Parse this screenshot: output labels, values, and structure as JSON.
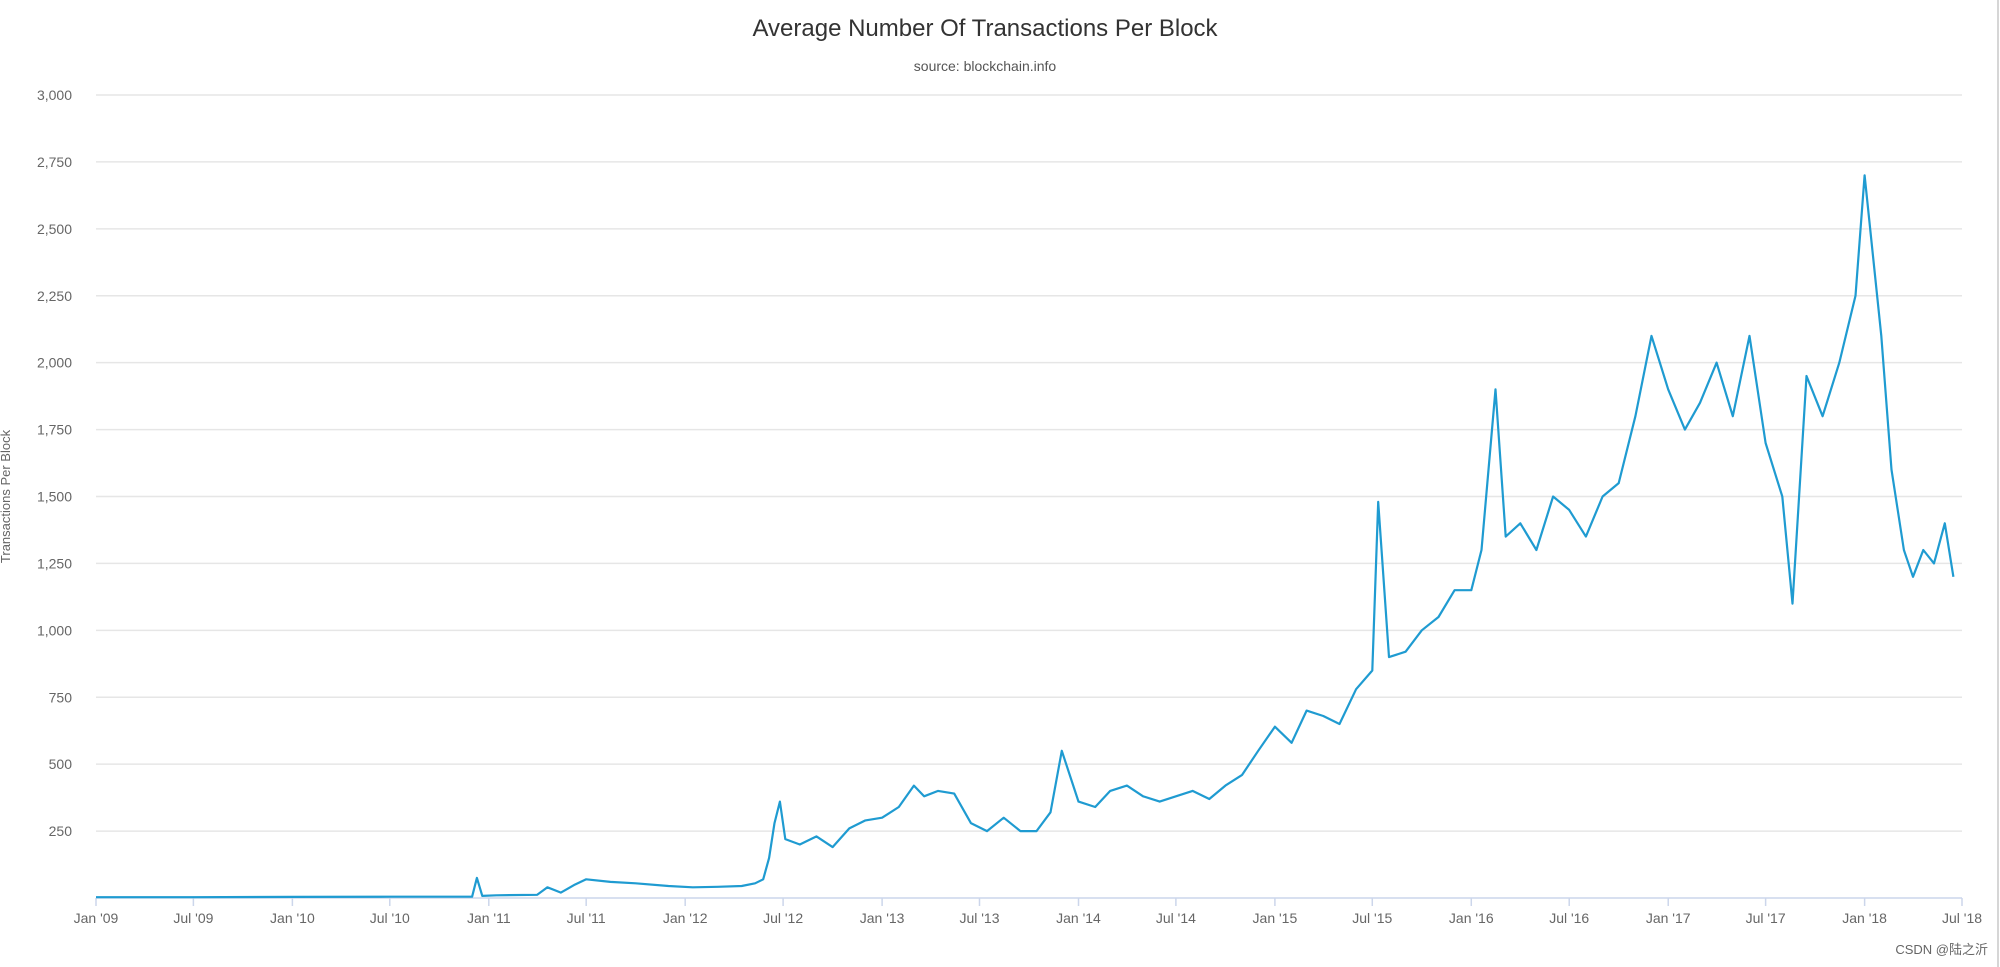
{
  "chart_data": {
    "type": "line",
    "title": "Average Number Of Transactions Per Block",
    "subtitle": "source: blockchain.info",
    "xlabel": "",
    "ylabel": "Transactions Per Block",
    "ylim": [
      0,
      3000
    ],
    "yticks": [
      250,
      500,
      750,
      1000,
      1250,
      1500,
      1750,
      2000,
      2250,
      2500,
      2750,
      3000
    ],
    "ytick_labels": [
      "250",
      "500",
      "750",
      "1,000",
      "1,250",
      "1,500",
      "1,750",
      "2,000",
      "2,250",
      "2,500",
      "2,750",
      "3,000"
    ],
    "xlim": [
      "2009-01-01",
      "2018-07-01"
    ],
    "xticks": [
      "2009-01-01",
      "2009-07-01",
      "2010-01-01",
      "2010-07-01",
      "2011-01-01",
      "2011-07-01",
      "2012-01-01",
      "2012-07-01",
      "2013-01-01",
      "2013-07-01",
      "2014-01-01",
      "2014-07-01",
      "2015-01-01",
      "2015-07-01",
      "2016-01-01",
      "2016-07-01",
      "2017-01-01",
      "2017-07-01",
      "2018-01-01",
      "2018-07-01"
    ],
    "xtick_labels": [
      "Jan '09",
      "Jul '09",
      "Jan '10",
      "Jul '10",
      "Jan '11",
      "Jul '11",
      "Jan '12",
      "Jul '12",
      "Jan '13",
      "Jul '13",
      "Jan '14",
      "Jul '14",
      "Jan '15",
      "Jul '15",
      "Jan '16",
      "Jul '16",
      "Jan '17",
      "Jul '17",
      "Jan '18",
      "Jul '18"
    ],
    "grid": true,
    "legend": "none",
    "color": "#1f9bd1",
    "series": [
      {
        "x": [
          "2009-01-01",
          "2009-07-01",
          "2010-01-01",
          "2010-07-01",
          "2010-12-01",
          "2010-12-10",
          "2010-12-20",
          "2011-01-15",
          "2011-04-01",
          "2011-04-20",
          "2011-05-15",
          "2011-06-10",
          "2011-07-01",
          "2011-08-15",
          "2011-10-01",
          "2011-12-01",
          "2012-01-15",
          "2012-03-01",
          "2012-04-15",
          "2012-05-10",
          "2012-05-25",
          "2012-06-05",
          "2012-06-15",
          "2012-06-25",
          "2012-07-05",
          "2012-08-01",
          "2012-09-01",
          "2012-10-01",
          "2012-11-01",
          "2012-12-01",
          "2013-01-01",
          "2013-02-01",
          "2013-03-01",
          "2013-03-20",
          "2013-04-15",
          "2013-05-15",
          "2013-06-15",
          "2013-07-15",
          "2013-08-15",
          "2013-09-15",
          "2013-10-15",
          "2013-11-10",
          "2013-12-01",
          "2014-01-01",
          "2014-02-01",
          "2014-03-01",
          "2014-04-01",
          "2014-05-01",
          "2014-06-01",
          "2014-07-01",
          "2014-08-01",
          "2014-09-01",
          "2014-10-01",
          "2014-11-01",
          "2014-12-01",
          "2015-01-01",
          "2015-02-01",
          "2015-03-01",
          "2015-04-01",
          "2015-05-01",
          "2015-06-01",
          "2015-07-01",
          "2015-07-12",
          "2015-08-01",
          "2015-09-01",
          "2015-10-01",
          "2015-11-01",
          "2015-12-01",
          "2016-01-01",
          "2016-01-20",
          "2016-02-15",
          "2016-03-05",
          "2016-04-01",
          "2016-05-01",
          "2016-06-01",
          "2016-07-01",
          "2016-08-01",
          "2016-09-01",
          "2016-10-01",
          "2016-11-01",
          "2016-12-01",
          "2017-01-01",
          "2017-02-01",
          "2017-03-01",
          "2017-04-01",
          "2017-05-01",
          "2017-06-01",
          "2017-07-01",
          "2017-08-01",
          "2017-08-20",
          "2017-09-15",
          "2017-10-15",
          "2017-11-15",
          "2017-12-15",
          "2018-01-01",
          "2018-02-01",
          "2018-02-20",
          "2018-03-15",
          "2018-04-01",
          "2018-04-20",
          "2018-05-10",
          "2018-05-30",
          "2018-06-15"
        ],
        "values": [
          3,
          3,
          4,
          5,
          5,
          75,
          8,
          10,
          12,
          40,
          20,
          50,
          70,
          60,
          55,
          45,
          40,
          42,
          45,
          55,
          70,
          150,
          280,
          360,
          220,
          200,
          230,
          190,
          260,
          290,
          300,
          340,
          420,
          380,
          400,
          390,
          280,
          250,
          300,
          250,
          250,
          320,
          550,
          360,
          340,
          400,
          420,
          380,
          360,
          380,
          400,
          370,
          420,
          460,
          550,
          640,
          580,
          700,
          680,
          650,
          780,
          850,
          1480,
          900,
          920,
          1000,
          1050,
          1150,
          1150,
          1300,
          1900,
          1350,
          1400,
          1300,
          1500,
          1450,
          1350,
          1500,
          1550,
          1800,
          2100,
          1900,
          1750,
          1850,
          2000,
          1800,
          2100,
          1700,
          1500,
          1100,
          1950,
          1800,
          2000,
          2250,
          2700,
          2100,
          1600,
          1300,
          1200,
          1300,
          1250,
          1400,
          1200
        ]
      }
    ]
  },
  "watermark": "CSDN @陆之沂"
}
